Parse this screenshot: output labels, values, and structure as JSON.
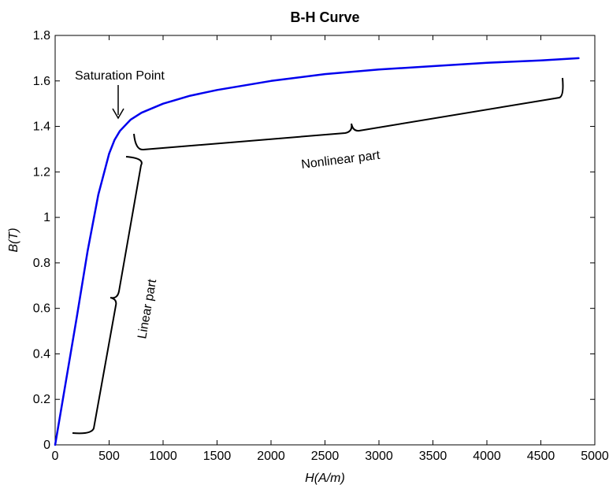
{
  "chart_data": {
    "type": "line",
    "title": "B-H Curve",
    "xlabel": "H(A/m)",
    "ylabel": "B(T)",
    "xlim": [
      0,
      5000
    ],
    "ylim": [
      0,
      1.8
    ],
    "x_ticks": [
      "0",
      "500",
      "1000",
      "1500",
      "2000",
      "2500",
      "3000",
      "3500",
      "4000",
      "4500",
      "5000"
    ],
    "y_ticks": [
      "0",
      "0.2",
      "0.4",
      "0.6",
      "0.8",
      "1",
      "1.2",
      "1.4",
      "1.6",
      "1.8"
    ],
    "grid": false,
    "series": [
      {
        "color": "#0000ee",
        "x": [
          0,
          100,
          200,
          300,
          400,
          500,
          550,
          600,
          700,
          800,
          1000,
          1250,
          1500,
          2000,
          2500,
          3000,
          3500,
          4000,
          4500,
          4850
        ],
        "y": [
          0,
          0.28,
          0.56,
          0.85,
          1.1,
          1.28,
          1.34,
          1.38,
          1.43,
          1.46,
          1.5,
          1.535,
          1.56,
          1.6,
          1.63,
          1.65,
          1.665,
          1.68,
          1.69,
          1.7
        ]
      }
    ],
    "annotations": {
      "saturation": "Saturation Point",
      "nonlinear": "Nonlinear part",
      "linear": "Linear part"
    }
  }
}
